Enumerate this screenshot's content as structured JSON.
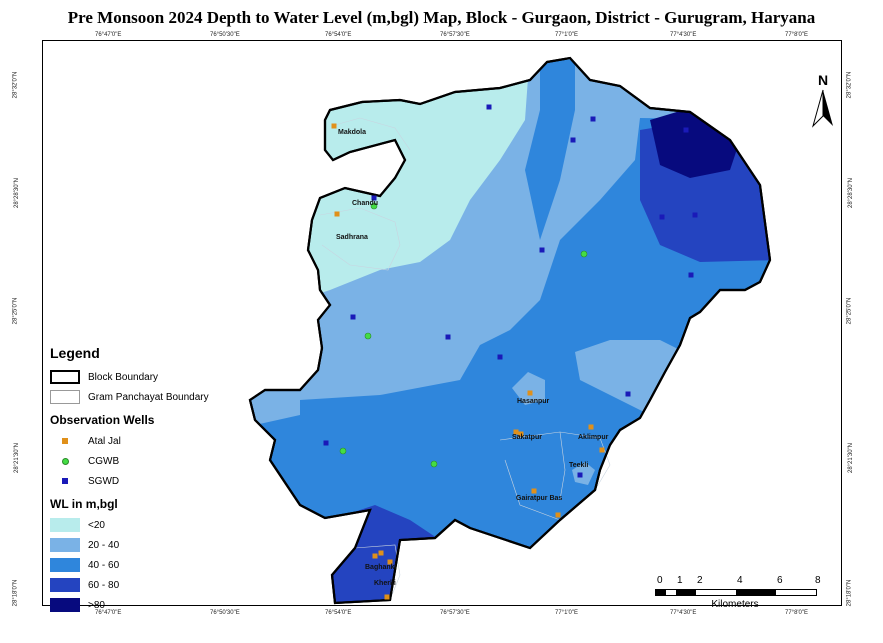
{
  "title": "Pre Monsoon 2024 Depth to Water Level (m,bgl) Map, Block - Gurgaon, District - Gurugram, Haryana",
  "top_ticks": [
    "76°47'0\"E",
    "76°50'30\"E",
    "76°54'0\"E",
    "76°57'30\"E",
    "77°1'0\"E",
    "77°4'30\"E",
    "77°8'0\"E"
  ],
  "bottom_ticks": [
    "76°47'0\"E",
    "76°50'30\"E",
    "76°54'0\"E",
    "76°57'30\"E",
    "77°1'0\"E",
    "77°4'30\"E",
    "77°8'0\"E"
  ],
  "left_ticks": [
    "28°32'0\"N",
    "28°28'30\"N",
    "28°25'0\"N",
    "28°21'30\"N",
    "28°18'0\"N"
  ],
  "right_ticks": [
    "28°32'0\"N",
    "28°28'30\"N",
    "28°25'0\"N",
    "28°21'30\"N",
    "28°18'0\"N"
  ],
  "north_label": "N",
  "legend": {
    "heading": "Legend",
    "block_boundary": "Block Boundary",
    "gp_boundary": "Gram Panchayat Boundary",
    "wells_heading": "Observation Wells",
    "wells": [
      {
        "label": "Atal Jal",
        "color": "#e0901a"
      },
      {
        "label": "CGWB",
        "color": "#44dd44"
      },
      {
        "label": "SGWD",
        "color": "#1a1ab8"
      }
    ],
    "wl_heading": "WL in m,bgl",
    "classes": [
      {
        "label": "<20",
        "color": "#b8ecec"
      },
      {
        "label": "20 - 40",
        "color": "#7ab2e6"
      },
      {
        "label": "40 - 60",
        "color": "#2f86dc"
      },
      {
        "label": "60 - 80",
        "color": "#2444c0"
      },
      {
        "label": ">80",
        "color": "#070a7e"
      }
    ]
  },
  "places": [
    "Makdola",
    "Chandu",
    "Sadhrana",
    "Hasanpur",
    "Sakatpur",
    "Aklimpur",
    "Teekli",
    "Gairatpur Bas",
    "Baghanki",
    "Kherki"
  ],
  "scale": {
    "ticks": [
      "0",
      "1",
      "2",
      "4",
      "6",
      "8"
    ],
    "unit": "Kilometers"
  }
}
